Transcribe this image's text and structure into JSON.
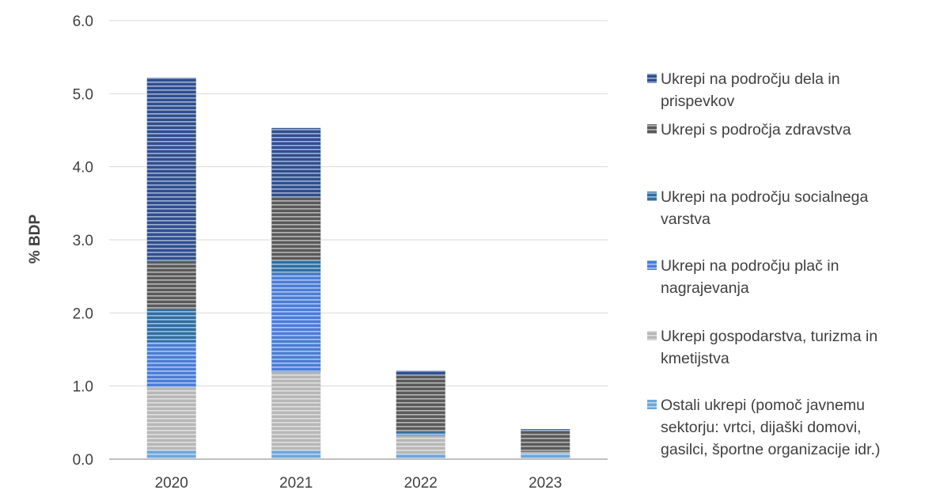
{
  "chart_data": {
    "type": "bar",
    "stacked": true,
    "categories": [
      "2020",
      "2021",
      "2022",
      "2023"
    ],
    "ylabel": "% BDP",
    "xlabel": "",
    "ylim": [
      0,
      6
    ],
    "yticks": [
      "0.0",
      "1.0",
      "2.0",
      "3.0",
      "4.0",
      "5.0",
      "6.0"
    ],
    "grid": true,
    "legend_position": "right",
    "series": [
      {
        "name": "Ostali ukrepi (pomoč javnemu sektorju: vrtci, dijaški domovi, gasilci, športne organizacije idr.)",
        "legend_lines": [
          "Ostali ukrepi (pomoč javnemu",
          "sektorju: vrtci, dijaški domovi,",
          "gasilci, športne organizacije idr.)"
        ],
        "color": "#6ea6d9",
        "values": [
          0.12,
          0.12,
          0.07,
          0.08
        ]
      },
      {
        "name": "Ukrepi gospodarstva, turizma in kmetijstva",
        "legend_lines": [
          "Ukrepi gospodarstva, turizma in",
          "kmetijstva"
        ],
        "color": "#b7b7b7",
        "values": [
          0.86,
          1.07,
          0.25,
          0.02
        ]
      },
      {
        "name": "Ukrepi na področju plač in nagrajevanja",
        "legend_lines": [
          "Ukrepi na področju plač in",
          "nagrajevanja"
        ],
        "color": "#4a7ed6",
        "values": [
          0.62,
          1.35,
          0.03,
          0.0
        ]
      },
      {
        "name": "Ukrepi na področju socialnega varstva",
        "legend_lines": [
          "Ukrepi na področju socialnega",
          "varstva"
        ],
        "color": "#2e6fa6",
        "values": [
          0.45,
          0.18,
          0.02,
          0.0
        ]
      },
      {
        "name": "Ukrepi s področja zdravstva",
        "legend_lines": [
          "Ukrepi s področja zdravstva"
        ],
        "color": "#5a5a5a",
        "values": [
          0.65,
          0.86,
          0.78,
          0.28
        ]
      },
      {
        "name": "Ukrepi na področju dela in prispevkov",
        "legend_lines": [
          "Ukrepi na področju dela in",
          "prispevkov"
        ],
        "color": "#2f4f91",
        "values": [
          2.52,
          0.95,
          0.06,
          0.03
        ]
      }
    ]
  }
}
